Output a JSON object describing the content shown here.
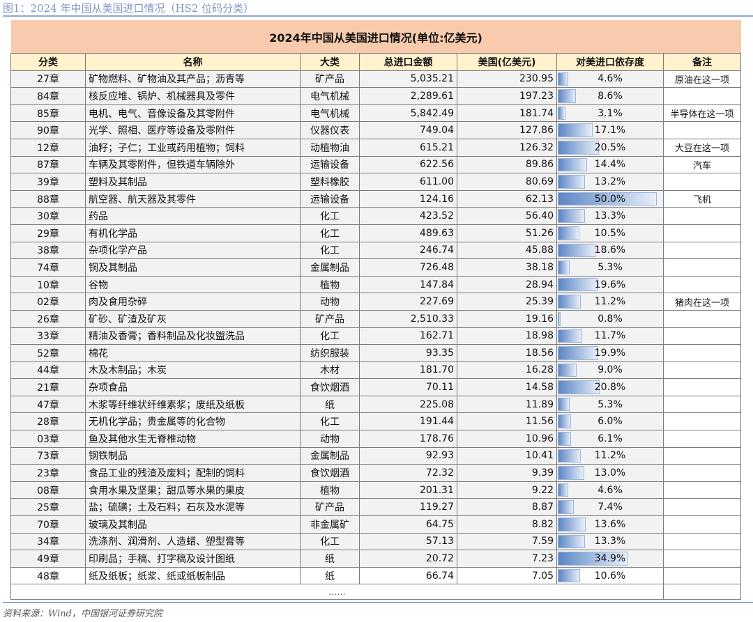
{
  "caption": "图1：2024 年中国从美国进口情况（HS2 位码分类）",
  "table_title": "2024年中国从美国进口情况(单位:亿美元)",
  "headers": [
    "分类",
    "名称",
    "大类",
    "总进口金额",
    "美国(亿美元)",
    "对美进口依存度",
    "备注"
  ],
  "bar_color": "#5b86c5",
  "bar_scale_max_pct": 50,
  "rows": [
    {
      "code": "27章",
      "name": "矿物燃料、矿物油及其产品；沥青等",
      "cat": "矿产品",
      "total": "5,035.21",
      "us": "230.95",
      "dep": "4.6%",
      "dep_v": 4.6,
      "note": "原油在这一项"
    },
    {
      "code": "84章",
      "name": "核反应堆、锅炉、机械器具及零件",
      "cat": "电气机械",
      "total": "2,289.61",
      "us": "197.23",
      "dep": "8.6%",
      "dep_v": 8.6,
      "note": ""
    },
    {
      "code": "85章",
      "name": "电机、电气、音像设备及其零附件",
      "cat": "电气机械",
      "total": "5,842.49",
      "us": "181.74",
      "dep": "3.1%",
      "dep_v": 3.1,
      "note": "半导体在这一项"
    },
    {
      "code": "90章",
      "name": "光学、照相、医疗等设备及零附件",
      "cat": "仪器仪表",
      "total": "749.04",
      "us": "127.86",
      "dep": "17.1%",
      "dep_v": 17.1,
      "note": ""
    },
    {
      "code": "12章",
      "name": "油籽；子仁；工业或药用植物；饲料",
      "cat": "动植物油",
      "total": "615.21",
      "us": "126.32",
      "dep": "20.5%",
      "dep_v": 20.5,
      "note": "大豆在这一项"
    },
    {
      "code": "87章",
      "name": "车辆及其零附件，但铁道车辆除外",
      "cat": "运输设备",
      "total": "622.56",
      "us": "89.86",
      "dep": "14.4%",
      "dep_v": 14.4,
      "note": "汽车"
    },
    {
      "code": "39章",
      "name": "塑料及其制品",
      "cat": "塑料橡胶",
      "total": "611.00",
      "us": "80.69",
      "dep": "13.2%",
      "dep_v": 13.2,
      "note": ""
    },
    {
      "code": "88章",
      "name": "航空器、航天器及其零件",
      "cat": "运输设备",
      "total": "124.16",
      "us": "62.13",
      "dep": "50.0%",
      "dep_v": 50.0,
      "note": "飞机"
    },
    {
      "code": "30章",
      "name": "药品",
      "cat": "化工",
      "total": "423.52",
      "us": "56.40",
      "dep": "13.3%",
      "dep_v": 13.3,
      "note": ""
    },
    {
      "code": "29章",
      "name": "有机化学品",
      "cat": "化工",
      "total": "489.63",
      "us": "51.26",
      "dep": "10.5%",
      "dep_v": 10.5,
      "note": ""
    },
    {
      "code": "38章",
      "name": "杂项化学产品",
      "cat": "化工",
      "total": "246.74",
      "us": "45.88",
      "dep": "18.6%",
      "dep_v": 18.6,
      "note": ""
    },
    {
      "code": "74章",
      "name": "铜及其制品",
      "cat": "金属制品",
      "total": "726.48",
      "us": "38.18",
      "dep": "5.3%",
      "dep_v": 5.3,
      "note": ""
    },
    {
      "code": "10章",
      "name": "谷物",
      "cat": "植物",
      "total": "147.84",
      "us": "28.94",
      "dep": "19.6%",
      "dep_v": 19.6,
      "note": ""
    },
    {
      "code": "02章",
      "name": "肉及食用杂碎",
      "cat": "动物",
      "total": "227.69",
      "us": "25.39",
      "dep": "11.2%",
      "dep_v": 11.2,
      "note": "猪肉在这一项"
    },
    {
      "code": "26章",
      "name": "矿砂、矿渣及矿灰",
      "cat": "矿产品",
      "total": "2,510.33",
      "us": "19.16",
      "dep": "0.8%",
      "dep_v": 0.8,
      "note": ""
    },
    {
      "code": "33章",
      "name": "精油及香膏；香料制品及化妆盥洗品",
      "cat": "化工",
      "total": "162.71",
      "us": "18.98",
      "dep": "11.7%",
      "dep_v": 11.7,
      "note": ""
    },
    {
      "code": "52章",
      "name": "棉花",
      "cat": "纺织服装",
      "total": "93.35",
      "us": "18.56",
      "dep": "19.9%",
      "dep_v": 19.9,
      "note": ""
    },
    {
      "code": "44章",
      "name": "木及木制品；木炭",
      "cat": "木材",
      "total": "181.70",
      "us": "16.28",
      "dep": "9.0%",
      "dep_v": 9.0,
      "note": ""
    },
    {
      "code": "21章",
      "name": "杂项食品",
      "cat": "食饮烟酒",
      "total": "70.11",
      "us": "14.58",
      "dep": "20.8%",
      "dep_v": 20.8,
      "note": ""
    },
    {
      "code": "47章",
      "name": "木浆等纤维状纤维素浆；废纸及纸板",
      "cat": "纸",
      "total": "225.08",
      "us": "11.89",
      "dep": "5.3%",
      "dep_v": 5.3,
      "note": ""
    },
    {
      "code": "28章",
      "name": "无机化学品；贵金属等的化合物",
      "cat": "化工",
      "total": "191.44",
      "us": "11.56",
      "dep": "6.0%",
      "dep_v": 6.0,
      "note": ""
    },
    {
      "code": "03章",
      "name": "鱼及其他水生无脊椎动物",
      "cat": "动物",
      "total": "178.76",
      "us": "10.96",
      "dep": "6.1%",
      "dep_v": 6.1,
      "note": ""
    },
    {
      "code": "73章",
      "name": "钢铁制品",
      "cat": "金属制品",
      "total": "92.93",
      "us": "10.41",
      "dep": "11.2%",
      "dep_v": 11.2,
      "note": ""
    },
    {
      "code": "23章",
      "name": "食品工业的残渣及废料；配制的饲料",
      "cat": "食饮烟酒",
      "total": "72.32",
      "us": "9.39",
      "dep": "13.0%",
      "dep_v": 13.0,
      "note": ""
    },
    {
      "code": "08章",
      "name": "食用水果及坚果；甜瓜等水果的果皮",
      "cat": "植物",
      "total": "201.31",
      "us": "9.22",
      "dep": "4.6%",
      "dep_v": 4.6,
      "note": ""
    },
    {
      "code": "25章",
      "name": "盐；硫磺；土及石料；石灰及水泥等",
      "cat": "矿产品",
      "total": "119.27",
      "us": "8.87",
      "dep": "7.4%",
      "dep_v": 7.4,
      "note": ""
    },
    {
      "code": "70章",
      "name": "玻璃及其制品",
      "cat": "非金属矿",
      "total": "64.75",
      "us": "8.82",
      "dep": "13.6%",
      "dep_v": 13.6,
      "note": ""
    },
    {
      "code": "34章",
      "name": "洗涤剂、润滑剂、人造蜡、塑型膏等",
      "cat": "化工",
      "total": "57.13",
      "us": "7.59",
      "dep": "13.3%",
      "dep_v": 13.3,
      "note": ""
    },
    {
      "code": "49章",
      "name": "印刷品；手稿、打字稿及设计图纸",
      "cat": "纸",
      "total": "20.72",
      "us": "7.23",
      "dep": "34.9%",
      "dep_v": 34.9,
      "note": ""
    },
    {
      "code": "48章",
      "name": "纸及纸板；纸浆、纸或纸板制品",
      "cat": "纸",
      "total": "66.74",
      "us": "7.05",
      "dep": "10.6%",
      "dep_v": 10.6,
      "note": ""
    }
  ],
  "ellipsis": "……",
  "source": "资料来源：Wind，中国银河证券研究院"
}
